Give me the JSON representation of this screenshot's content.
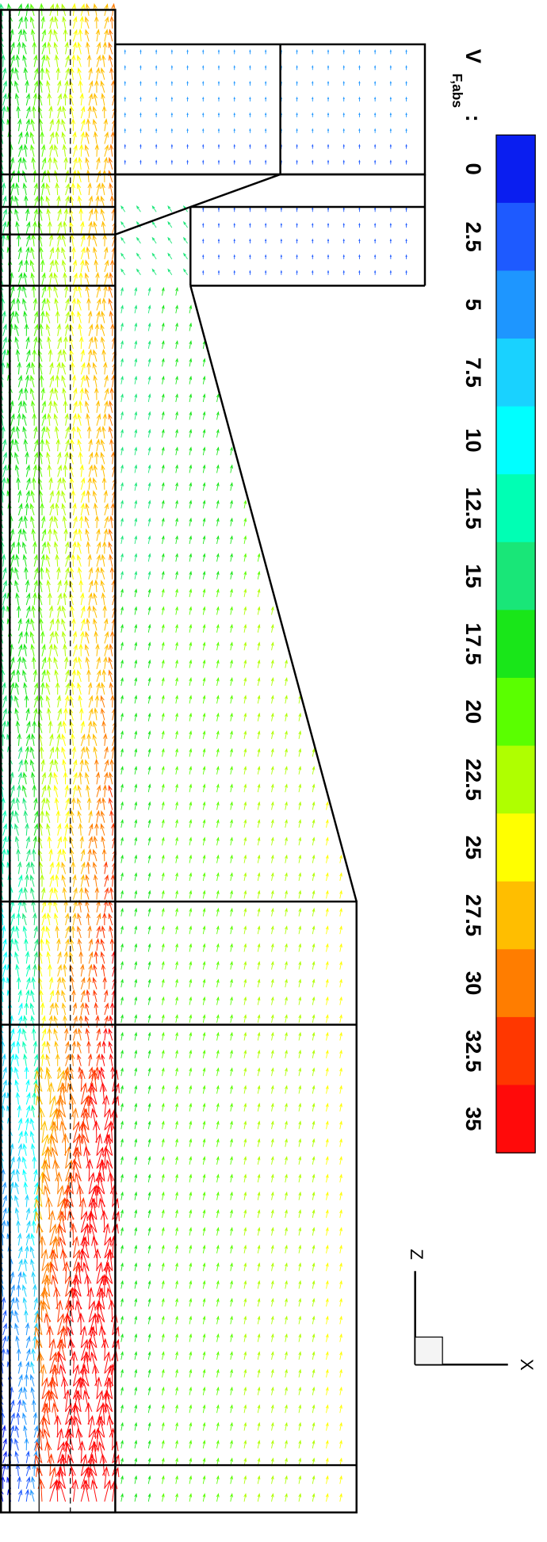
{
  "chart_data": {
    "type": "vector_field",
    "legend_title": "V",
    "legend_title_subscript": "F,abs",
    "legend_title_suffix": ":",
    "levels": [
      0,
      2.5,
      5,
      7.5,
      10,
      12.5,
      15,
      17.5,
      20,
      22.5,
      25,
      27.5,
      30,
      32.5,
      35
    ],
    "colors": [
      "#0a1ef0",
      "#1e5aff",
      "#1e96ff",
      "#19d2ff",
      "#00ffff",
      "#00ffb4",
      "#19e678",
      "#19e619",
      "#5aff00",
      "#afff00",
      "#ffff00",
      "#ffbe00",
      "#ff7d00",
      "#ff3700",
      "#ff0a0a"
    ],
    "axis_labels": {
      "z": "Z",
      "x": "X"
    }
  }
}
